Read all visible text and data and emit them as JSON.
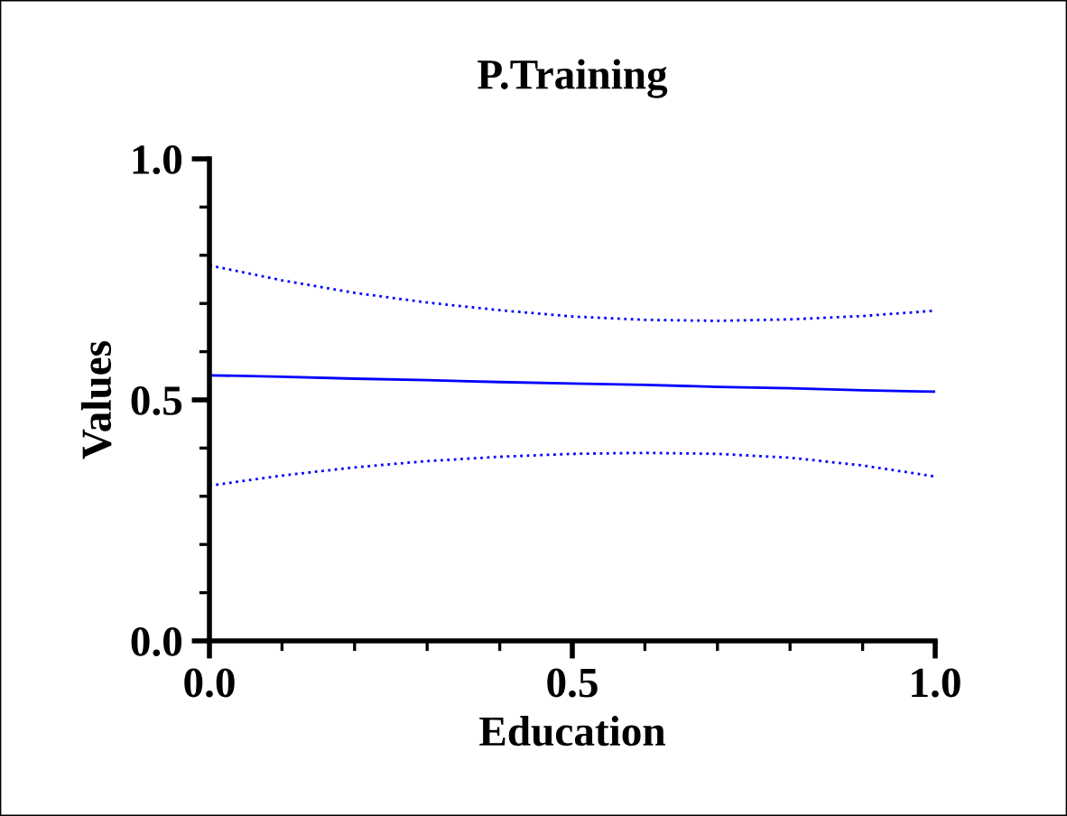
{
  "chart_data": {
    "type": "line",
    "title": "P.Training",
    "xlabel": "Education",
    "ylabel": "Values",
    "x": [
      0,
      0.1,
      0.2,
      0.3,
      0.4,
      0.5,
      0.6,
      0.7,
      0.8,
      0.9,
      1.0
    ],
    "series": [
      {
        "color": "#0000ff",
        "values": [
          0.551,
          0.548,
          0.544,
          0.541,
          0.537,
          0.534,
          0.531,
          0.527,
          0.524,
          0.52,
          0.517
        ]
      },
      {
        "color": "#0000ff",
        "line_style": "dotted",
        "values": [
          0.322,
          0.343,
          0.36,
          0.373,
          0.382,
          0.388,
          0.39,
          0.388,
          0.38,
          0.364,
          0.341
        ]
      },
      {
        "color": "#0000ff",
        "line_style": "dotted",
        "values": [
          0.779,
          0.748,
          0.722,
          0.702,
          0.686,
          0.673,
          0.666,
          0.664,
          0.667,
          0.674,
          0.685
        ]
      }
    ],
    "xlim": [
      0,
      1
    ],
    "ylim": [
      0,
      1
    ],
    "xticks": [
      {
        "value": 0,
        "label": "0.0"
      },
      0.5,
      {
        "value": 1,
        "label": "1.0"
      }
    ],
    "yticks": [
      {
        "value": 0,
        "label": "0.0"
      },
      0.5,
      {
        "value": 1,
        "label": "1.0"
      }
    ],
    "grid": false,
    "legend": false,
    "marker": "none",
    "line_style": "solid"
  }
}
